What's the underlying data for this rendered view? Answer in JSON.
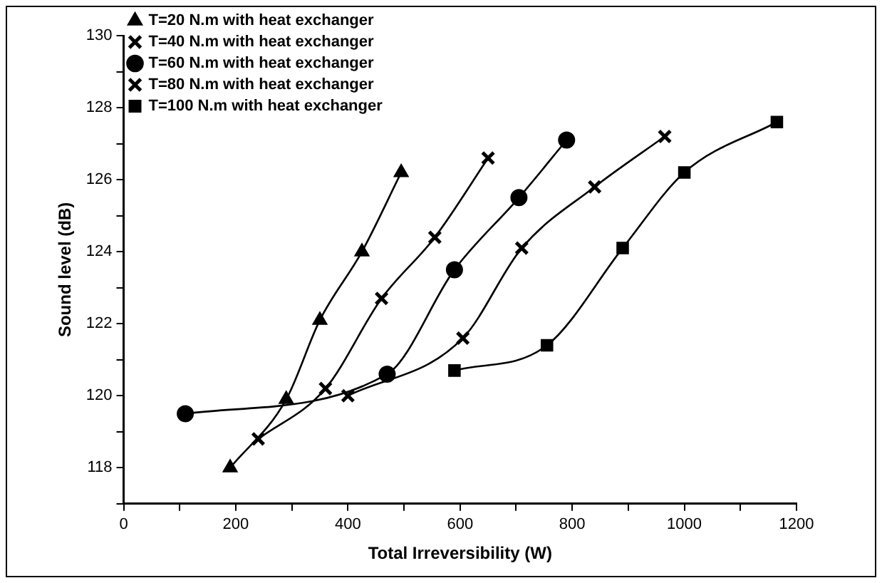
{
  "chart_data": {
    "type": "line",
    "xlabel": "Total Irreversibility (W)",
    "ylabel": "Sound level (dB)",
    "xlim": [
      0,
      1200
    ],
    "xticks": [
      0,
      {
        "value": 100,
        "label": null
      },
      200,
      {
        "value": 300,
        "label": null
      },
      400,
      {
        "value": 500,
        "label": null
      },
      600,
      {
        "value": 700,
        "label": null
      },
      800,
      {
        "value": 900,
        "label": null
      },
      1000,
      {
        "value": 1100,
        "label": null
      },
      1200
    ],
    "ylim": [
      117,
      130
    ],
    "yticks": [
      {
        "value": 117,
        "label": null
      },
      118,
      {
        "value": 119,
        "label": null
      },
      120,
      {
        "value": 121,
        "label": null
      },
      122,
      {
        "value": 123,
        "label": null
      },
      124,
      {
        "value": 125,
        "label": null
      },
      126,
      {
        "value": 127,
        "label": null
      },
      128,
      {
        "value": 129,
        "label": null
      },
      130
    ],
    "grid": false,
    "legend": "top left",
    "series": [
      {
        "name": "T=20 N.m with heat exchanger",
        "color": "#000000",
        "marker": "triangle",
        "x": [
          190,
          290,
          350,
          425,
          495
        ],
        "values": [
          118,
          119.9,
          122.1,
          124,
          126.2
        ]
      },
      {
        "name": "T=40 N.m with heat exchanger",
        "color": "#000000",
        "marker": "cross",
        "x": [
          240,
          360,
          460,
          555,
          650
        ],
        "values": [
          118.8,
          120.2,
          122.7,
          124.4,
          126.6
        ]
      },
      {
        "name": "T=60 N.m with heat exchanger",
        "color": "#000000",
        "marker": "circle",
        "x": [
          110,
          470,
          590,
          705,
          790
        ],
        "values": [
          119.5,
          120.6,
          123.5,
          125.5,
          127.1
        ]
      },
      {
        "name": "T=80 N.m with heat exchanger",
        "color": "#000000",
        "marker": "cross",
        "x": [
          400,
          605,
          710,
          840,
          965
        ],
        "values": [
          120,
          121.6,
          124.1,
          125.8,
          127.2
        ]
      },
      {
        "name": "T=100 N.m with heat exchanger",
        "color": "#000000",
        "marker": "square",
        "x": [
          590,
          755,
          890,
          1000,
          1165
        ],
        "values": [
          120.7,
          121.4,
          124.1,
          126.2,
          127.6
        ]
      }
    ]
  }
}
